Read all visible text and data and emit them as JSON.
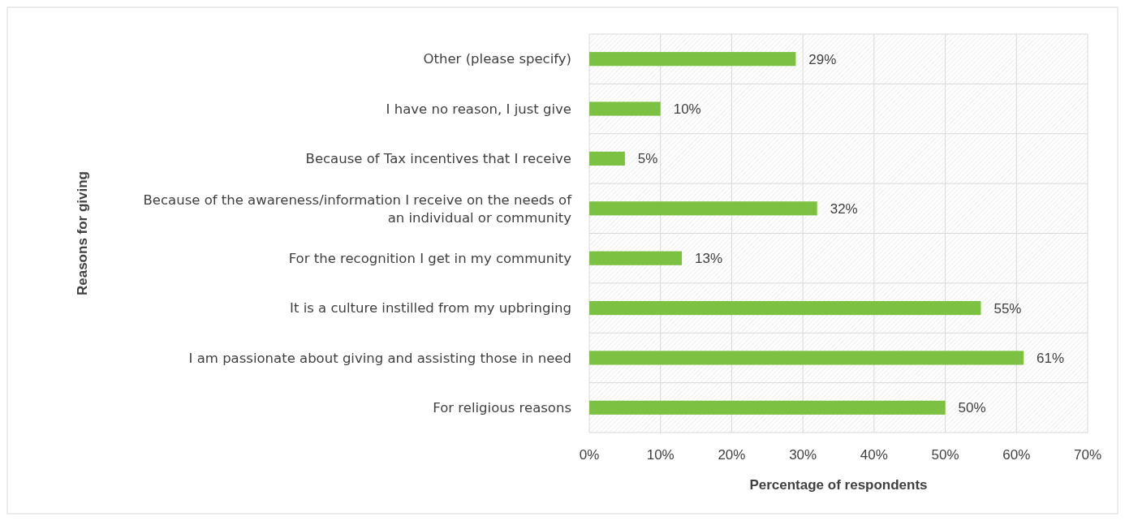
{
  "chart_data": {
    "type": "bar",
    "orientation": "horizontal",
    "xlabel": "Percentage of respondents",
    "ylabel": "Reasons for giving",
    "categories": [
      "Other (please specify)",
      "I have no reason, I just give",
      "Because of Tax incentives that I receive",
      "Because of the awareness/information I receive on the needs of an individual or community",
      "For the recognition I get in my community",
      "It is a culture instilled from my upbringing",
      "I am passionate about giving and assisting those in need",
      "For religious reasons"
    ],
    "values": [
      29,
      10,
      5,
      32,
      13,
      55,
      61,
      50
    ],
    "value_labels": [
      "29%",
      "10%",
      "5%",
      "32%",
      "13%",
      "55%",
      "61%",
      "50%"
    ],
    "color": "#7dc142",
    "xlim": [
      0,
      70
    ],
    "xticks": [
      {
        "value": 0,
        "label": "0%"
      },
      {
        "value": 10,
        "label": "10%"
      },
      {
        "value": 20,
        "label": "20%"
      },
      {
        "value": 30,
        "label": "30%"
      },
      {
        "value": 40,
        "label": "40%"
      },
      {
        "value": 50,
        "label": "50%"
      },
      {
        "value": 60,
        "label": "60%"
      },
      {
        "value": 70,
        "label": "70%"
      }
    ],
    "grid": true
  }
}
